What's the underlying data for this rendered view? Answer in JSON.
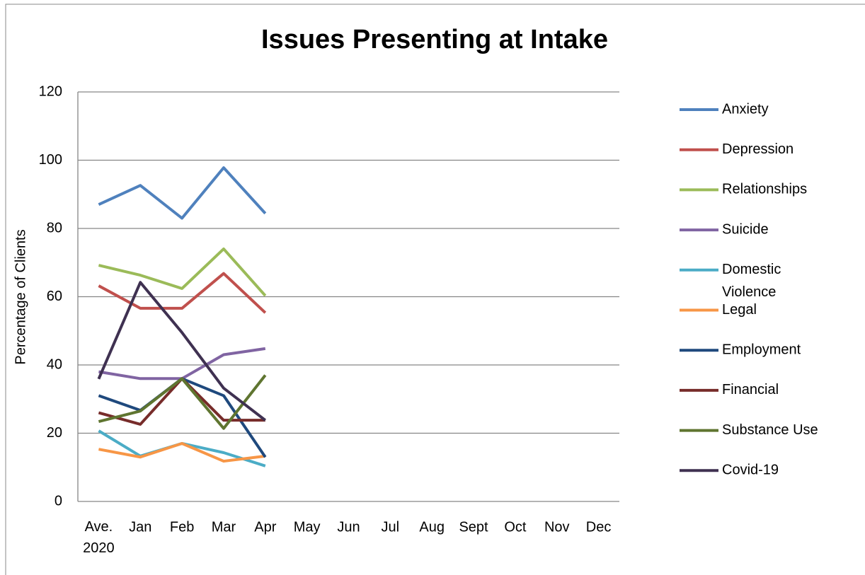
{
  "chart_data": {
    "type": "line",
    "title": "Issues Presenting at Intake",
    "y_label": "Percentage of Clients",
    "categories": [
      "Ave. 2020",
      "Jan",
      "Feb",
      "Mar",
      "Apr",
      "May",
      "Jun",
      "Jul",
      "Aug",
      "Sept",
      "Oct",
      "Nov",
      "Dec"
    ],
    "ylim": [
      0,
      120
    ],
    "yticks": [
      0,
      20,
      40,
      60,
      80,
      100,
      120
    ],
    "grid": true,
    "legend": "right",
    "series": [
      {
        "name": "Anxiety",
        "color": "#4f81bd",
        "values": [
          87,
          92.6,
          83,
          97.8,
          84.4,
          null,
          null,
          null,
          null,
          null,
          null,
          null,
          null
        ]
      },
      {
        "name": "Depression",
        "color": "#c0504d",
        "values": [
          63.2,
          56.6,
          56.6,
          66.8,
          55.3,
          null,
          null,
          null,
          null,
          null,
          null,
          null,
          null
        ]
      },
      {
        "name": "Relationships",
        "color": "#9bbb59",
        "values": [
          69.2,
          66.3,
          62.4,
          74,
          60.3,
          null,
          null,
          null,
          null,
          null,
          null,
          null,
          null
        ]
      },
      {
        "name": "Suicide",
        "color": "#8064a2",
        "values": [
          38,
          36,
          36,
          43,
          44.8,
          null,
          null,
          null,
          null,
          null,
          null,
          null,
          null
        ]
      },
      {
        "name": "Domestic Violence",
        "color": "#4bacc6",
        "values": [
          20.7,
          13.3,
          17,
          14.3,
          10.4,
          null,
          null,
          null,
          null,
          null,
          null,
          null,
          null
        ]
      },
      {
        "name": "Legal",
        "color": "#f79646",
        "values": [
          15.3,
          13,
          17,
          11.8,
          13.3,
          null,
          null,
          null,
          null,
          null,
          null,
          null,
          null
        ]
      },
      {
        "name": "Employment",
        "color": "#1f497d",
        "values": [
          31,
          26.7,
          36,
          31,
          13,
          null,
          null,
          null,
          null,
          null,
          null,
          null,
          null
        ]
      },
      {
        "name": "Financial",
        "color": "#772c2a",
        "values": [
          26,
          22.6,
          36,
          23.8,
          23.8,
          null,
          null,
          null,
          null,
          null,
          null,
          null,
          null
        ]
      },
      {
        "name": "Substance Use",
        "color": "#5f7530",
        "values": [
          23.4,
          26.5,
          36,
          21.4,
          37,
          null,
          null,
          null,
          null,
          null,
          null,
          null,
          null
        ]
      },
      {
        "name": "Covid-19",
        "color": "#3f3151",
        "values": [
          35.9,
          64.2,
          49.5,
          33.2,
          23.8,
          null,
          null,
          null,
          null,
          null,
          null,
          null,
          null
        ]
      }
    ]
  }
}
